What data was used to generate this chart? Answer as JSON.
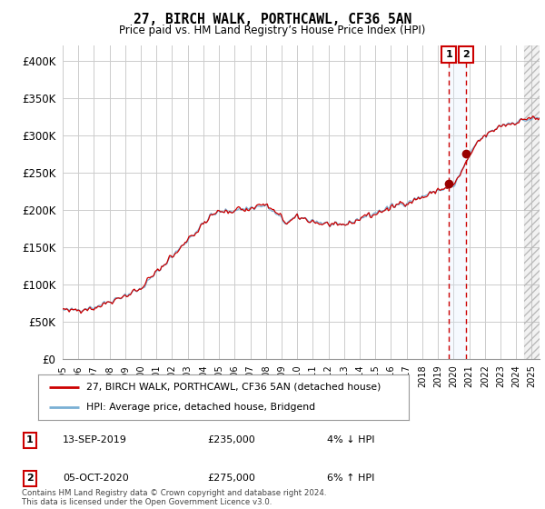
{
  "title": "27, BIRCH WALK, PORTHCAWL, CF36 5AN",
  "subtitle": "Price paid vs. HM Land Registry’s House Price Index (HPI)",
  "ylabel_ticks": [
    "£0",
    "£50K",
    "£100K",
    "£150K",
    "£200K",
    "£250K",
    "£300K",
    "£350K",
    "£400K"
  ],
  "ytick_values": [
    0,
    50000,
    100000,
    150000,
    200000,
    250000,
    300000,
    350000,
    400000
  ],
  "ylim": [
    0,
    420000
  ],
  "xlim_start": 1995.0,
  "xlim_end": 2025.5,
  "line1_color": "#cc0000",
  "line2_color": "#7ab0d4",
  "marker_color": "#990000",
  "vline_color": "#cc0000",
  "vline2_color": "#cc0000",
  "shade_color": "#ddeeff",
  "annotation_box_color": "#cc0000",
  "legend_label1": "27, BIRCH WALK, PORTHCAWL, CF36 5AN (detached house)",
  "legend_label2": "HPI: Average price, detached house, Bridgend",
  "transaction1_date": "13-SEP-2019",
  "transaction1_price": "£235,000",
  "transaction1_hpi": "4% ↓ HPI",
  "transaction2_date": "05-OCT-2020",
  "transaction2_price": "£275,000",
  "transaction2_hpi": "6% ↑ HPI",
  "footer": "Contains HM Land Registry data © Crown copyright and database right 2024.\nThis data is licensed under the Open Government Licence v3.0.",
  "transaction1_x": 2019.7,
  "transaction1_y": 235000,
  "transaction2_x": 2020.78,
  "transaction2_y": 275000,
  "background_color": "#ffffff",
  "grid_color": "#cccccc",
  "future_cutoff": 2024.5
}
